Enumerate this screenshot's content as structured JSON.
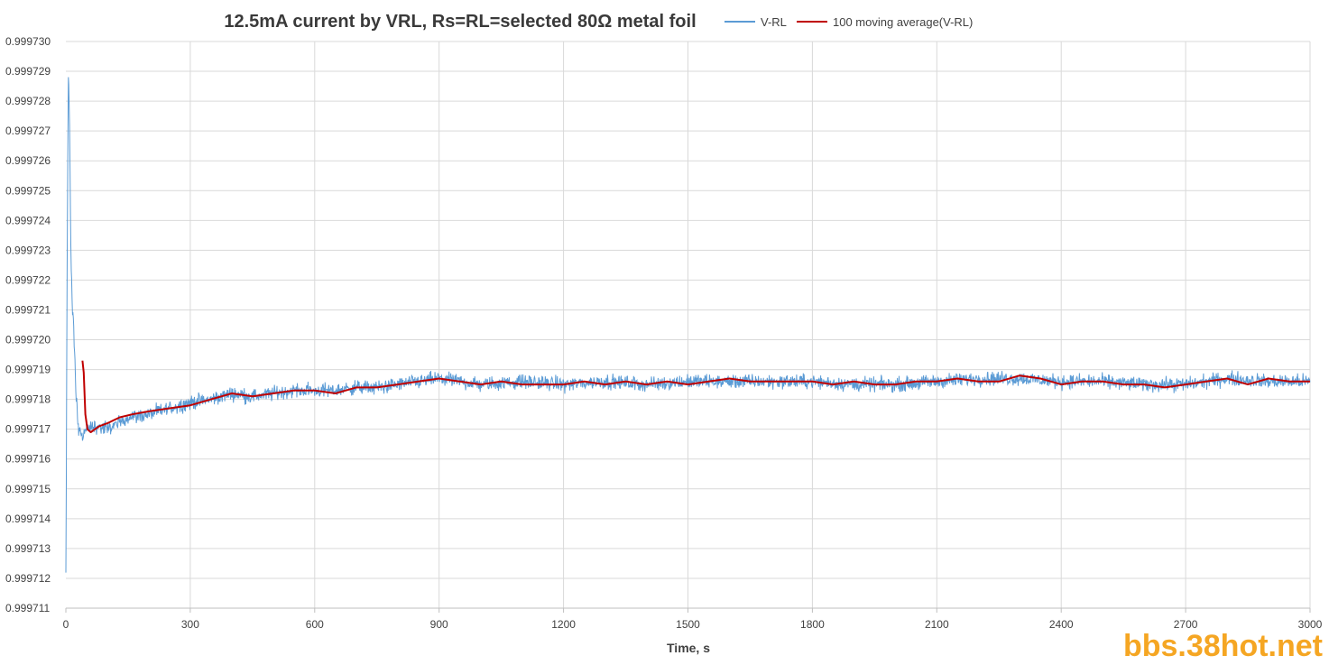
{
  "chart_data": {
    "type": "line",
    "title": "12.5mA current by VRL, Rs=RL=selected 80Ω metal foil",
    "xlabel": "Time, s",
    "ylabel": "",
    "xlim": [
      0,
      3000
    ],
    "ylim": [
      0.999711,
      0.99973
    ],
    "x_ticks": [
      "0",
      "300",
      "600",
      "900",
      "1200",
      "1500",
      "1800",
      "2100",
      "2400",
      "2700",
      "3000"
    ],
    "y_ticks": [
      "0.999711",
      "0.999712",
      "0.999713",
      "0.999714",
      "0.999715",
      "0.999716",
      "0.999717",
      "0.999718",
      "0.999719",
      "0.999720",
      "0.999721",
      "0.999722",
      "0.999723",
      "0.999724",
      "0.999725",
      "0.999726",
      "0.999727",
      "0.999728",
      "0.999729",
      "0.999730"
    ],
    "grid": true,
    "legend_position": "top",
    "series": [
      {
        "name": "V-RL",
        "color": "#5b9bd5",
        "noise_amplitude": 2.5e-07,
        "x": [
          0,
          3,
          6,
          9,
          12,
          16,
          20,
          25,
          30,
          40,
          50,
          70,
          100,
          150,
          200,
          250,
          300,
          350,
          400,
          450,
          500,
          550,
          600,
          650,
          700,
          750,
          800,
          850,
          900,
          950,
          1000,
          1100,
          1200,
          1300,
          1400,
          1500,
          1600,
          1700,
          1800,
          1900,
          2000,
          2100,
          2200,
          2300,
          2400,
          2500,
          2600,
          2700,
          2800,
          2900,
          3000
        ],
        "y": [
          0.9997121,
          0.999722,
          0.999729,
          0.999727,
          0.999723,
          0.999721,
          0.99972,
          0.999718,
          0.999717,
          0.9997168,
          0.999717,
          0.9997171,
          0.999717,
          0.9997174,
          0.9997175,
          0.9997177,
          0.9997179,
          0.999718,
          0.9997182,
          0.9997181,
          0.9997182,
          0.9997183,
          0.9997183,
          0.9997183,
          0.9997184,
          0.9997184,
          0.9997185,
          0.9997186,
          0.9997187,
          0.9997186,
          0.9997185,
          0.9997186,
          0.9997185,
          0.9997186,
          0.9997185,
          0.9997186,
          0.9997186,
          0.9997186,
          0.9997186,
          0.9997185,
          0.9997185,
          0.9997186,
          0.9997187,
          0.9997187,
          0.9997186,
          0.9997186,
          0.9997185,
          0.9997185,
          0.9997187,
          0.9997186,
          0.9997186
        ]
      },
      {
        "name": "100 moving average(V-RL)",
        "color": "#c00000",
        "x": [
          40,
          43,
          47,
          52,
          60,
          70,
          80,
          100,
          130,
          160,
          200,
          250,
          300,
          350,
          400,
          450,
          500,
          550,
          600,
          650,
          700,
          750,
          800,
          850,
          900,
          950,
          1000,
          1050,
          1100,
          1150,
          1200,
          1250,
          1300,
          1350,
          1400,
          1450,
          1500,
          1550,
          1600,
          1650,
          1700,
          1750,
          1800,
          1850,
          1900,
          1950,
          2000,
          2050,
          2100,
          2150,
          2200,
          2250,
          2300,
          2350,
          2400,
          2450,
          2500,
          2550,
          2600,
          2650,
          2700,
          2750,
          2800,
          2850,
          2900,
          2950,
          3000
        ],
        "y": [
          0.9997193,
          0.9997189,
          0.9997175,
          0.999717,
          0.9997169,
          0.999717,
          0.9997171,
          0.9997172,
          0.9997174,
          0.9997175,
          0.9997176,
          0.9997177,
          0.9997178,
          0.999718,
          0.9997182,
          0.9997181,
          0.9997182,
          0.9997183,
          0.9997183,
          0.9997182,
          0.9997184,
          0.9997184,
          0.9997185,
          0.9997186,
          0.9997187,
          0.9997186,
          0.9997185,
          0.9997186,
          0.9997185,
          0.9997185,
          0.9997185,
          0.9997186,
          0.9997185,
          0.9997186,
          0.9997185,
          0.9997186,
          0.9997185,
          0.9997186,
          0.9997187,
          0.9997186,
          0.9997186,
          0.9997186,
          0.9997186,
          0.9997185,
          0.9997186,
          0.9997185,
          0.9997185,
          0.9997186,
          0.9997186,
          0.9997187,
          0.9997186,
          0.9997186,
          0.9997188,
          0.9997187,
          0.9997185,
          0.9997186,
          0.9997186,
          0.9997185,
          0.9997185,
          0.9997184,
          0.9997185,
          0.9997186,
          0.9997187,
          0.9997185,
          0.9997187,
          0.9997186,
          0.9997186
        ]
      }
    ]
  },
  "watermark": "bbs.38hot.net"
}
